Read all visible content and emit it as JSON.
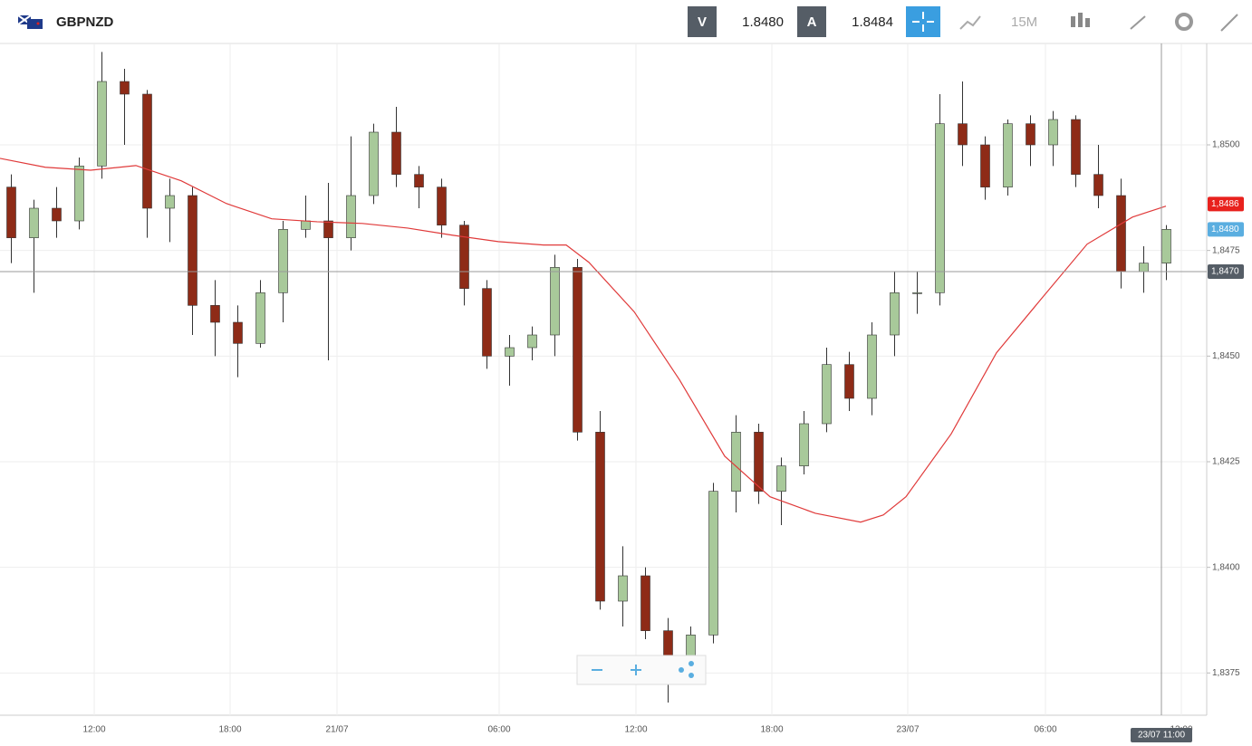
{
  "header": {
    "symbol": "GBPNZD",
    "bid_label": "V",
    "bid": "1.8480",
    "ask_label": "A",
    "ask": "1.8484",
    "timeframe": "15M"
  },
  "chart_data": {
    "type": "candlestick",
    "x": [
      0.5,
      1.5,
      2.5,
      3.5,
      4.5,
      5.5,
      6.5,
      7.5,
      8.5,
      9.5,
      10.5,
      11.5,
      12.5,
      13.5,
      14.5,
      15.5,
      16.5,
      17.5,
      18.5,
      19.5,
      20.5,
      21.5,
      22.5,
      23.5,
      24.5,
      25.5,
      26.5,
      27.5,
      28.5,
      29.5,
      30.5,
      31.5,
      32.5,
      33.5,
      34.5,
      35.5,
      36.5,
      37.5,
      38.5,
      39.5,
      40.5,
      41.5,
      42.5,
      43.5,
      44.5,
      45.5,
      46.5,
      47.5,
      48.5,
      49.5,
      50.5,
      51.5
    ],
    "open": [
      1.849,
      1.8478,
      1.8485,
      1.8482,
      1.8495,
      1.8515,
      1.8512,
      1.8485,
      1.8488,
      1.8462,
      1.8458,
      1.8453,
      1.8465,
      1.848,
      1.8482,
      1.8478,
      1.8488,
      1.8503,
      1.8493,
      1.849,
      1.8481,
      1.8466,
      1.845,
      1.8452,
      1.8455,
      1.8471,
      1.8432,
      1.8392,
      1.8398,
      1.8385,
      1.8376,
      1.8384,
      1.8418,
      1.8432,
      1.8418,
      1.8424,
      1.8434,
      1.8448,
      1.844,
      1.8455,
      1.8465,
      1.8465,
      1.8505,
      1.85,
      1.849,
      1.8505,
      1.85,
      1.8506,
      1.8493,
      1.8488,
      1.847,
      1.8472
    ],
    "high": [
      1.8493,
      1.8487,
      1.849,
      1.8497,
      1.8522,
      1.8518,
      1.8513,
      1.8492,
      1.849,
      1.8468,
      1.8462,
      1.8468,
      1.8482,
      1.8488,
      1.8491,
      1.8502,
      1.8505,
      1.8509,
      1.8495,
      1.8492,
      1.8482,
      1.8468,
      1.8455,
      1.8457,
      1.8474,
      1.8473,
      1.8437,
      1.8405,
      1.84,
      1.8388,
      1.8386,
      1.842,
      1.8436,
      1.8434,
      1.8426,
      1.8437,
      1.8452,
      1.8451,
      1.8458,
      1.847,
      1.847,
      1.8512,
      1.8515,
      1.8502,
      1.8506,
      1.8507,
      1.8508,
      1.8507,
      1.85,
      1.8492,
      1.8476,
      1.8481
    ],
    "low": [
      1.8472,
      1.8465,
      1.8478,
      1.848,
      1.8492,
      1.85,
      1.8478,
      1.8477,
      1.8455,
      1.845,
      1.8445,
      1.8452,
      1.8458,
      1.8478,
      1.8449,
      1.8475,
      1.8486,
      1.849,
      1.8485,
      1.8478,
      1.8462,
      1.8447,
      1.8443,
      1.8449,
      1.845,
      1.843,
      1.839,
      1.8386,
      1.8383,
      1.8368,
      1.8373,
      1.8382,
      1.8413,
      1.8415,
      1.841,
      1.8422,
      1.8432,
      1.8437,
      1.8436,
      1.845,
      1.846,
      1.8462,
      1.8495,
      1.8487,
      1.8488,
      1.8495,
      1.8495,
      1.849,
      1.8485,
      1.8466,
      1.8465,
      1.8468
    ],
    "close": [
      1.8478,
      1.8485,
      1.8482,
      1.8495,
      1.8515,
      1.8512,
      1.8485,
      1.8488,
      1.8462,
      1.8458,
      1.8453,
      1.8465,
      1.848,
      1.8482,
      1.8478,
      1.8488,
      1.8503,
      1.8493,
      1.849,
      1.8481,
      1.8466,
      1.845,
      1.8452,
      1.8455,
      1.8471,
      1.8432,
      1.8392,
      1.8398,
      1.8385,
      1.8376,
      1.8384,
      1.8418,
      1.8432,
      1.8418,
      1.8424,
      1.8434,
      1.8448,
      1.844,
      1.8455,
      1.8465,
      1.8465,
      1.8505,
      1.85,
      1.849,
      1.8505,
      1.85,
      1.8506,
      1.8493,
      1.8488,
      1.847,
      1.8472,
      1.848
    ],
    "up_color": "#a8c99a",
    "down_color": "#8e2b17",
    "moving_average": {
      "color": "#e03a3a",
      "x": [
        0,
        2,
        4,
        6,
        8,
        10,
        12,
        14,
        16,
        18,
        20,
        22,
        24,
        25,
        26,
        28,
        30,
        32,
        34,
        36,
        38,
        39,
        40,
        42,
        44,
        46,
        48,
        50,
        51.48
      ],
      "values": [
        1.84968,
        1.84947,
        1.8494,
        1.84951,
        1.84915,
        1.84861,
        1.84825,
        1.84818,
        1.84814,
        1.84803,
        1.84786,
        1.84771,
        1.84763,
        1.84763,
        1.84722,
        1.84605,
        1.84444,
        1.84263,
        1.84167,
        1.84128,
        1.84107,
        1.84124,
        1.84167,
        1.84316,
        1.84508,
        1.84637,
        1.84765,
        1.84829,
        1.84855
      ]
    },
    "xlim": [
      0,
      53.28
    ],
    "xticks": [
      {
        "value": 4.16,
        "label": "12:00"
      },
      {
        "value": 10.16,
        "label": "18:00"
      },
      {
        "value": 14.88,
        "label": "21/07"
      },
      {
        "value": 22.04,
        "label": "06:00"
      },
      {
        "value": 28.08,
        "label": "12:00"
      },
      {
        "value": 34.08,
        "label": "18:00"
      },
      {
        "value": 40.08,
        "label": "23/07"
      },
      {
        "value": 46.16,
        "label": "06:00"
      },
      {
        "value": 52.16,
        "label": "12:00"
      }
    ],
    "ylim": [
      1.8365,
      1.8524
    ],
    "yticks": [
      {
        "value": 1.8375,
        "label": "1,8375"
      },
      {
        "value": 1.84,
        "label": "1,8400"
      },
      {
        "value": 1.8425,
        "label": "1,8425"
      },
      {
        "value": 1.845,
        "label": "1,8450"
      },
      {
        "value": 1.8475,
        "label": "1,8475"
      },
      {
        "value": 1.85,
        "label": "1,8500"
      }
    ],
    "price_tags": [
      {
        "value": 1.8486,
        "label": "1,8486",
        "color": "#e8211d"
      },
      {
        "value": 1.848,
        "label": "1,8480",
        "color": "#5aaee0"
      }
    ],
    "crosshair": {
      "y": {
        "value": 1.847,
        "label": "1,8470"
      },
      "x": {
        "value": 51.28,
        "label": "23/07 11:00"
      }
    },
    "grid": true
  }
}
